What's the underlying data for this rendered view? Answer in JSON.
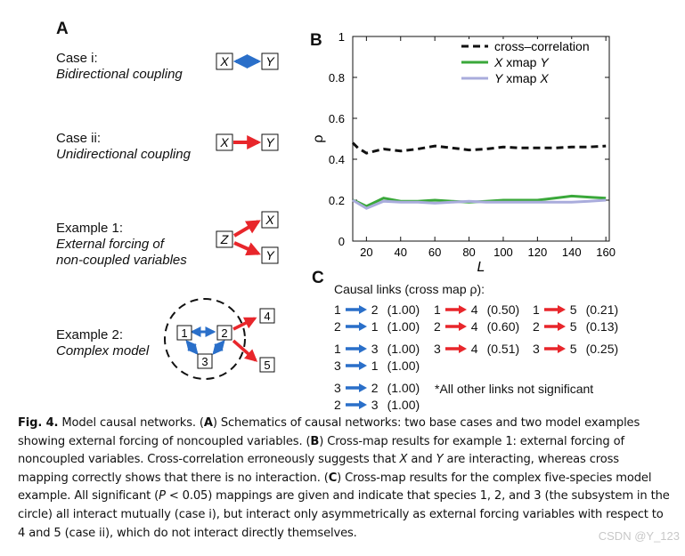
{
  "panel_a": {
    "label": "A",
    "case1": {
      "title": "Case i:",
      "subtitle": "Bidirectional coupling",
      "node_x": "X",
      "node_y": "Y"
    },
    "case2": {
      "title": "Case ii:",
      "subtitle": "Unidirectional coupling",
      "node_x": "X",
      "node_y": "Y"
    },
    "example1": {
      "title": "Example 1:",
      "subtitle_line1": "External forcing of",
      "subtitle_line2": "non-coupled variables",
      "node_z": "Z",
      "node_x": "X",
      "node_y": "Y"
    },
    "example2": {
      "title": "Example 2:",
      "subtitle": "Complex model",
      "nodes": [
        "1",
        "2",
        "3",
        "4",
        "5"
      ]
    }
  },
  "panel_b": {
    "label": "B",
    "chart_data": {
      "type": "line",
      "xlabel": "L",
      "ylabel": "ρ",
      "xlim": [
        12,
        162
      ],
      "ylim": [
        0,
        1
      ],
      "xticks": [
        20,
        40,
        60,
        80,
        100,
        120,
        140,
        160
      ],
      "yticks": [
        0,
        0.2,
        0.4,
        0.6,
        0.8,
        1
      ],
      "ytick_labels": [
        "0",
        "0.2",
        "0.4",
        "0.6",
        "0.8",
        "1"
      ],
      "legend_position": "top-right",
      "series": [
        {
          "name": "cross–correlation",
          "color": "#111111",
          "dash": "dashed",
          "x": [
            12,
            15,
            20,
            30,
            40,
            50,
            60,
            70,
            80,
            90,
            100,
            110,
            120,
            130,
            140,
            150,
            160
          ],
          "y": [
            0.48,
            0.455,
            0.43,
            0.45,
            0.44,
            0.45,
            0.465,
            0.455,
            0.445,
            0.45,
            0.46,
            0.455,
            0.455,
            0.455,
            0.46,
            0.46,
            0.465
          ]
        },
        {
          "name_prefix": "X",
          "name_suffix": " xmap ",
          "name_target": "Y",
          "color": "#3aa83a",
          "dash": "solid",
          "x": [
            12,
            15,
            20,
            30,
            40,
            50,
            60,
            70,
            80,
            90,
            100,
            110,
            120,
            130,
            140,
            150,
            160
          ],
          "y": [
            0.2,
            0.19,
            0.17,
            0.21,
            0.195,
            0.195,
            0.2,
            0.195,
            0.19,
            0.195,
            0.2,
            0.2,
            0.2,
            0.21,
            0.22,
            0.215,
            0.21
          ]
        },
        {
          "name_prefix": "Y",
          "name_suffix": " xmap ",
          "name_target": "X",
          "color": "#a9acdc",
          "dash": "solid",
          "x": [
            12,
            15,
            20,
            30,
            40,
            50,
            60,
            70,
            80,
            90,
            100,
            110,
            120,
            130,
            140,
            150,
            160
          ],
          "y": [
            0.2,
            0.185,
            0.16,
            0.195,
            0.19,
            0.19,
            0.185,
            0.19,
            0.195,
            0.19,
            0.19,
            0.19,
            0.19,
            0.19,
            0.19,
            0.195,
            0.2
          ]
        }
      ]
    }
  },
  "panel_c": {
    "label": "C",
    "heading": "Causal links (cross map ρ):",
    "links": [
      {
        "from": "1",
        "to": "2",
        "value": "(1.00)",
        "color": "blue"
      },
      {
        "from": "2",
        "to": "1",
        "value": "(1.00)",
        "color": "blue"
      },
      {
        "from": "1",
        "to": "3",
        "value": "(1.00)",
        "color": "blue"
      },
      {
        "from": "3",
        "to": "1",
        "value": "(1.00)",
        "color": "blue"
      },
      {
        "from": "3",
        "to": "2",
        "value": "(1.00)",
        "color": "blue"
      },
      {
        "from": "2",
        "to": "3",
        "value": "(1.00)",
        "color": "blue"
      },
      {
        "from": "1",
        "to": "4",
        "value": "(0.50)",
        "color": "red"
      },
      {
        "from": "2",
        "to": "4",
        "value": "(0.60)",
        "color": "red"
      },
      {
        "from": "3",
        "to": "4",
        "value": "(0.51)",
        "color": "red"
      },
      {
        "from": "1",
        "to": "5",
        "value": "(0.21)",
        "color": "red"
      },
      {
        "from": "2",
        "to": "5",
        "value": "(0.13)",
        "color": "red"
      },
      {
        "from": "3",
        "to": "5",
        "value": "(0.25)",
        "color": "red"
      }
    ],
    "note": "*All other links not significant"
  },
  "caption": {
    "fig": "Fig. 4.",
    "t1": " Model causal networks. (",
    "a": "A",
    "t2": ") Schematics of causal networks: two base cases and two model examples showing external forcing of noncoupled variables. (",
    "b": "B",
    "t3": ") Cross-map results for example 1: external forcing of noncoupled variables. Cross-correlation erroneously suggests that ",
    "x1": "X",
    "t4": " and ",
    "y1": "Y",
    "t5": " are interacting, whereas cross mapping correctly shows that there is no interaction. (",
    "c": "C",
    "t6": ") Cross-map results for the complex five-species model example. All significant (",
    "p": "P",
    "t7": " < 0.05) mappings are given and indicate that species 1, 2, and 3 (the subsystem in the circle) all interact mutually (case i), but interact only asymmetrically as external forcing variables with respect to 4 and 5 (case ii), which do not interact directly themselves."
  },
  "colors": {
    "blue": "#2a6fc9",
    "red": "#e8262b"
  },
  "watermark": "CSDN @Y_123"
}
